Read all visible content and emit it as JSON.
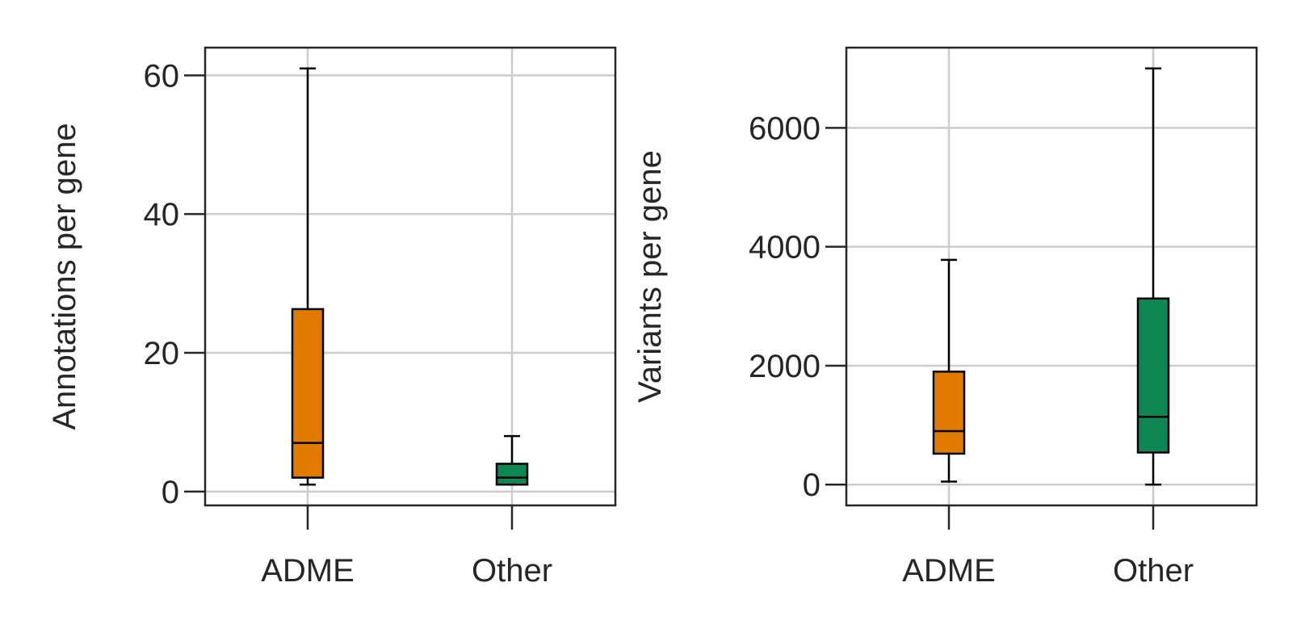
{
  "chart_data": [
    {
      "type": "box",
      "categories": [
        "ADME",
        "Other"
      ],
      "colors": [
        "#e07b00",
        "#0f8755"
      ],
      "xlabel": "",
      "ylabel": "Annotations per gene",
      "ylim": [
        -2,
        64
      ],
      "yticks": [
        0,
        20,
        40,
        60
      ],
      "grid": true,
      "boxes": [
        {
          "category": "ADME",
          "whisker_low": 1,
          "q1": 2,
          "median": 7,
          "q3": 26.3,
          "whisker_high": 61
        },
        {
          "category": "Other",
          "whisker_low": 1,
          "q1": 1,
          "median": 2,
          "q3": 4,
          "whisker_high": 8
        }
      ]
    },
    {
      "type": "box",
      "categories": [
        "ADME",
        "Other"
      ],
      "colors": [
        "#e07b00",
        "#0f8755"
      ],
      "xlabel": "",
      "ylabel": "Variants per gene",
      "ylim": [
        -350,
        7350
      ],
      "yticks": [
        0,
        2000,
        4000,
        6000
      ],
      "grid": true,
      "boxes": [
        {
          "category": "ADME",
          "whisker_low": 50,
          "q1": 520,
          "median": 900,
          "q3": 1900,
          "whisker_high": 3780
        },
        {
          "category": "Other",
          "whisker_low": 0,
          "q1": 540,
          "median": 1140,
          "q3": 3130,
          "whisker_high": 7000
        }
      ]
    }
  ]
}
